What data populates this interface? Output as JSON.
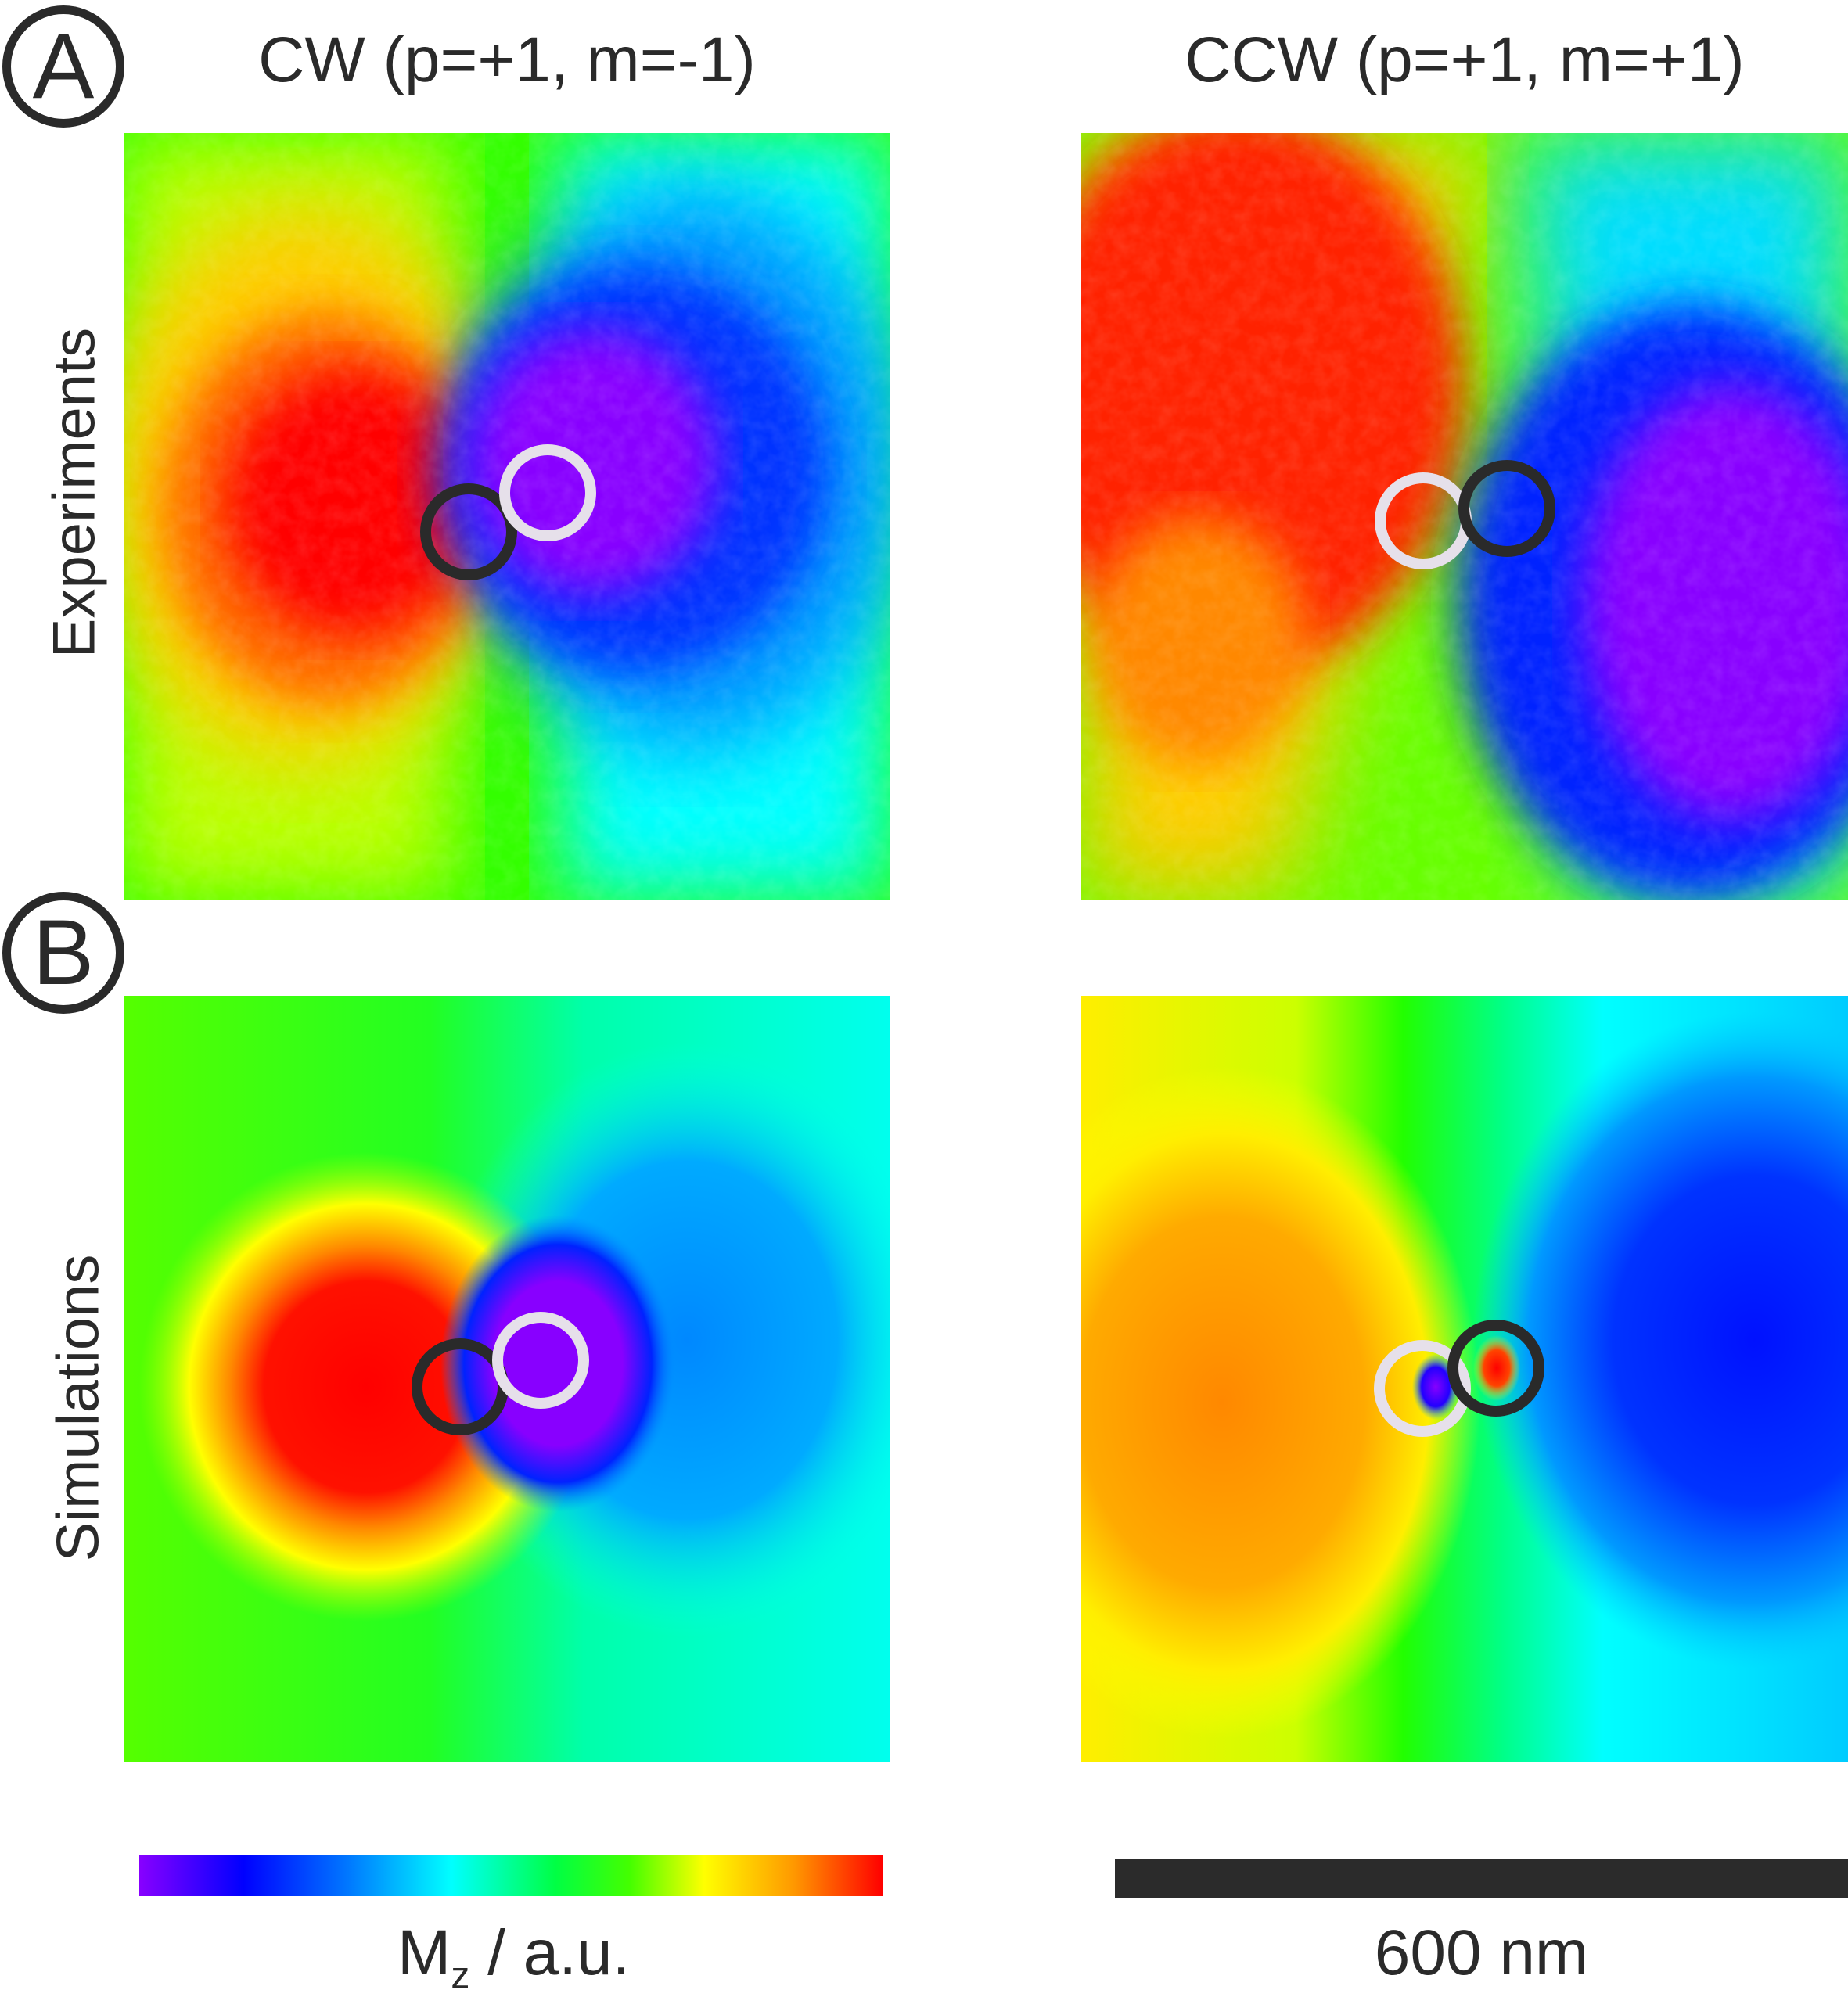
{
  "figure": {
    "badges": {
      "a": "A",
      "b": "B"
    },
    "columns": {
      "cw": "CW (p=+1, m=-1)",
      "ccw": "CCW (p=+1, m=+1)"
    },
    "rows": {
      "experiments": "Experiments",
      "simulations": "Simulations"
    },
    "colorbar_label": {
      "symbol": "M",
      "subscript": "z",
      "unit": " / a.u."
    },
    "scalebar_label": "600 nm",
    "colors": {
      "outline_dark": "#2a2a2a",
      "outline_light": "#e6e0ea",
      "colormap": [
        "#8800ff",
        "#0000ff",
        "#0077ff",
        "#00ffff",
        "#00ff44",
        "#44ff00",
        "#ffff00",
        "#ff9900",
        "#ff0000"
      ]
    }
  }
}
